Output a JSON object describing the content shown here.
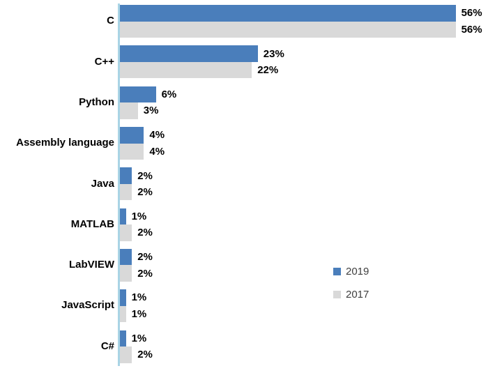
{
  "chart_data": {
    "type": "bar",
    "orientation": "horizontal",
    "title": "",
    "xlabel": "",
    "ylabel": "",
    "categories": [
      "C",
      "C++",
      "Python",
      "Assembly language",
      "Java",
      "MATLAB",
      "LabVIEW",
      "JavaScript",
      "C#"
    ],
    "series": [
      {
        "name": "2019",
        "color": "#4a7ebb",
        "values": [
          56,
          23,
          6,
          4,
          2,
          1,
          2,
          1,
          1
        ]
      },
      {
        "name": "2017",
        "color": "#d9d9d9",
        "values": [
          56,
          22,
          3,
          4,
          2,
          2,
          2,
          1,
          2
        ]
      }
    ],
    "value_suffix": "%",
    "xlim": [
      0,
      60
    ],
    "grid": false,
    "axis_color": "#a9d4e5",
    "data_labels": "outside-end",
    "legend_position": "right-middle"
  }
}
